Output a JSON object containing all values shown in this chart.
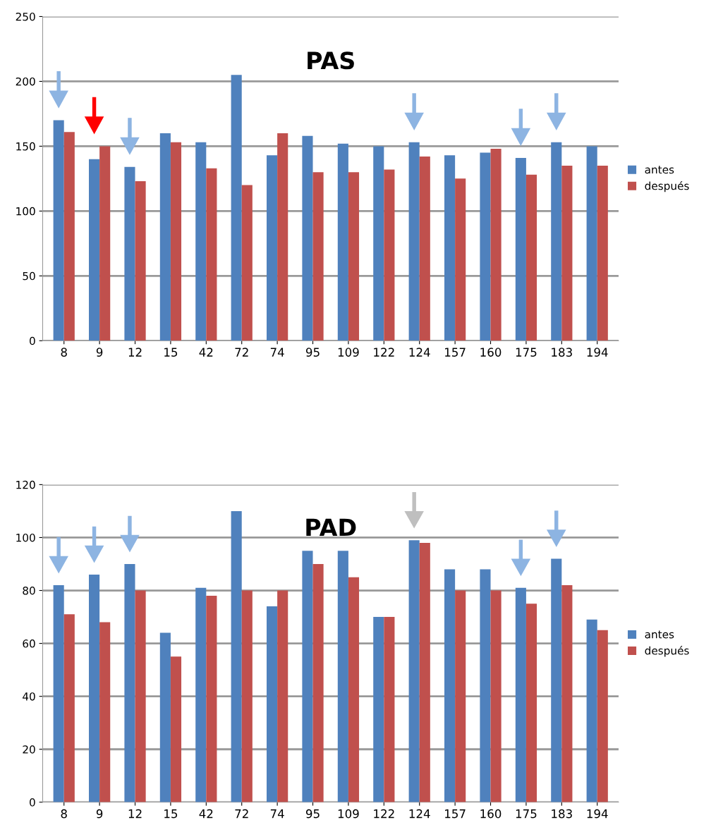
{
  "chart_data": [
    {
      "type": "bar",
      "title": "PAS",
      "categories": [
        "8",
        "9",
        "12",
        "15",
        "42",
        "72",
        "74",
        "95",
        "109",
        "122",
        "124",
        "157",
        "160",
        "175",
        "183",
        "194"
      ],
      "series": [
        {
          "name": "antes",
          "color": "#4f81bd",
          "values": [
            170,
            140,
            134,
            160,
            153,
            205,
            143,
            158,
            152,
            150,
            153,
            143,
            145,
            141,
            153,
            150
          ]
        },
        {
          "name": "después",
          "color": "#c0504d",
          "values": [
            161,
            150,
            123,
            153,
            133,
            120,
            160,
            130,
            130,
            132,
            142,
            125,
            148,
            128,
            135,
            135
          ]
        }
      ],
      "ylim": [
        0,
        250
      ],
      "yticks": [
        0,
        50,
        100,
        150,
        200,
        250
      ],
      "grid": "y",
      "legend": "right"
    },
    {
      "type": "bar",
      "title": "PAD",
      "categories": [
        "8",
        "9",
        "12",
        "15",
        "42",
        "72",
        "74",
        "95",
        "109",
        "122",
        "124",
        "157",
        "160",
        "175",
        "183",
        "194"
      ],
      "series": [
        {
          "name": "antes",
          "color": "#4f81bd",
          "values": [
            82,
            86,
            90,
            64,
            81,
            110,
            74,
            95,
            95,
            70,
            99,
            88,
            88,
            81,
            92,
            69
          ]
        },
        {
          "name": "después",
          "color": "#c0504d",
          "values": [
            71,
            68,
            80,
            55,
            78,
            80,
            80,
            90,
            85,
            70,
            98,
            80,
            80,
            75,
            82,
            65
          ]
        }
      ],
      "ylim": [
        0,
        120
      ],
      "yticks": [
        0,
        20,
        40,
        60,
        80,
        100,
        120
      ],
      "grid": "y",
      "legend": "right"
    }
  ]
}
